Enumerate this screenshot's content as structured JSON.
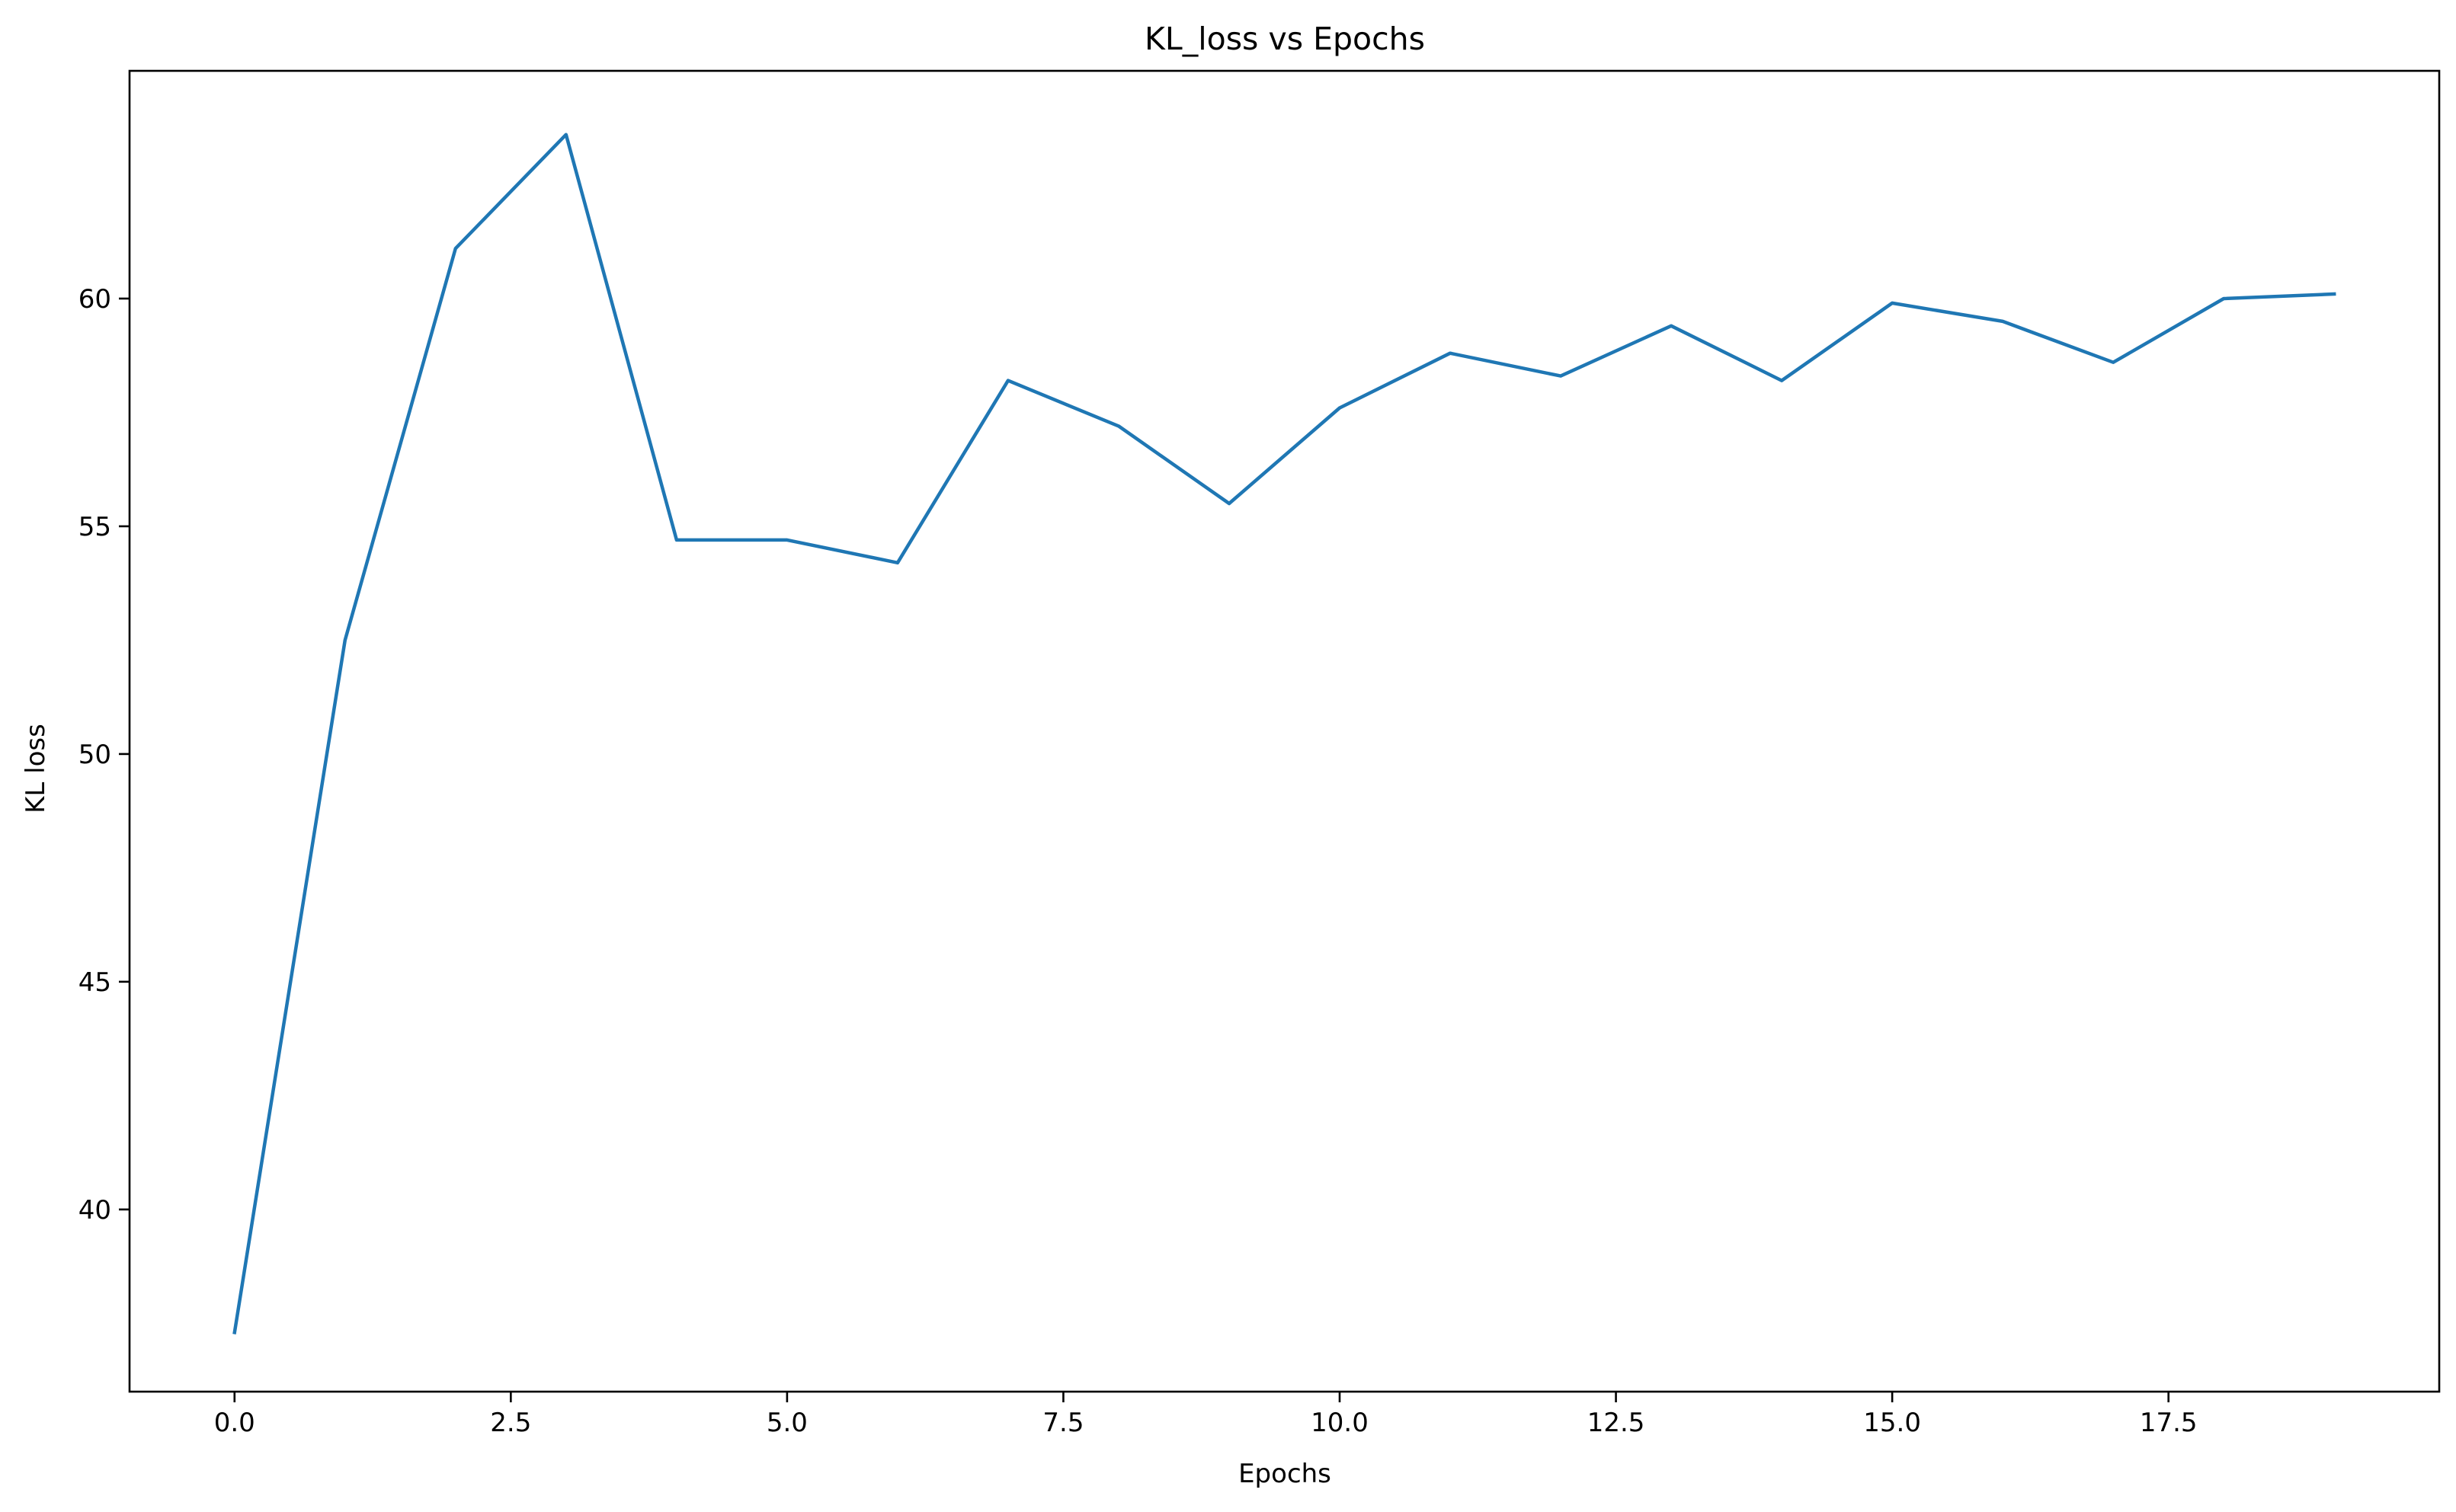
{
  "chart_data": {
    "type": "line",
    "title": "KL_loss vs Epochs",
    "xlabel": "Epochs",
    "ylabel": "KL loss",
    "xlim": [
      -0.95,
      19.95
    ],
    "ylim": [
      36.0,
      65.0
    ],
    "xticks": [
      0.0,
      2.5,
      5.0,
      7.5,
      10.0,
      12.5,
      15.0,
      17.5
    ],
    "xtick_labels": [
      "0.0",
      "2.5",
      "5.0",
      "7.5",
      "10.0",
      "12.5",
      "15.0",
      "17.5"
    ],
    "yticks": [
      40,
      45,
      50,
      55,
      60
    ],
    "ytick_labels": [
      "40",
      "45",
      "50",
      "55",
      "60"
    ],
    "grid": false,
    "legend": "none",
    "line_color": "#1f77b4",
    "series": [
      {
        "x": [
          0,
          1,
          2,
          3,
          4,
          5,
          6,
          7,
          8,
          9,
          10,
          11,
          12,
          13,
          14,
          15,
          16,
          17,
          18,
          19
        ],
        "y": [
          37.3,
          52.5,
          61.1,
          63.6,
          54.7,
          54.7,
          54.2,
          58.2,
          57.2,
          55.5,
          57.6,
          58.8,
          58.3,
          59.4,
          58.2,
          59.9,
          59.5,
          58.6,
          60.0,
          60.1
        ]
      }
    ]
  }
}
